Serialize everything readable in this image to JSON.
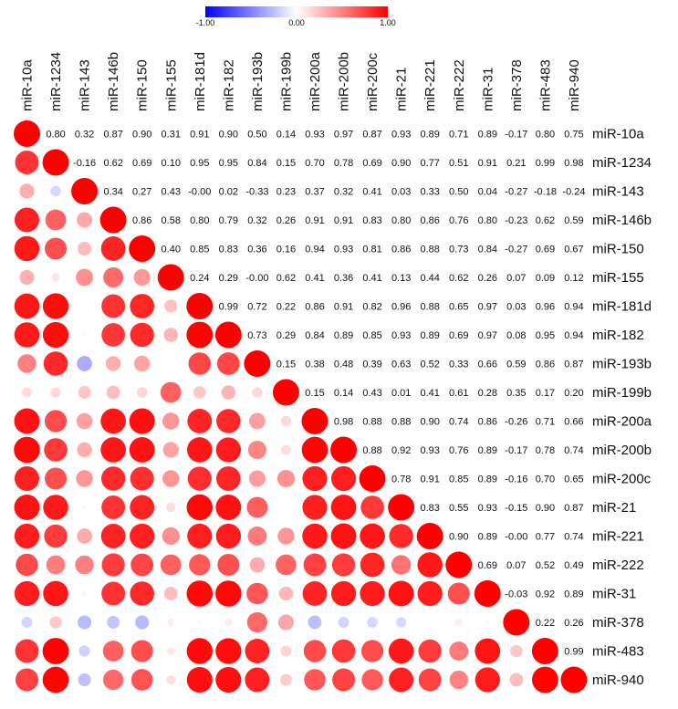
{
  "chart_data": {
    "type": "heatmap",
    "style": "correlation-plot, circles in lower triangle, numbers in upper triangle",
    "labels": [
      "miR-10a",
      "miR-1234",
      "miR-143",
      "miR-146b",
      "miR-150",
      "miR-155",
      "miR-181d",
      "miR-182",
      "miR-193b",
      "miR-199b",
      "miR-200a",
      "miR-200b",
      "miR-200c",
      "miR-21",
      "miR-221",
      "miR-222",
      "miR-31",
      "miR-378",
      "miR-483",
      "miR-940"
    ],
    "upper_text": [
      [
        "",
        "0.80",
        "0.32",
        "0.87",
        "0.90",
        "0.31",
        "0.91",
        "0.90",
        "0.50",
        "0.14",
        "0.93",
        "0.97",
        "0.87",
        "0.93",
        "0.89",
        "0.71",
        "0.89",
        "-0.17",
        "0.80",
        "0.75"
      ],
      [
        "",
        "",
        "-0.16",
        "0.62",
        "0.69",
        "0.10",
        "0.95",
        "0.95",
        "0.84",
        "0.15",
        "0.70",
        "0.78",
        "0.69",
        "0.90",
        "0.77",
        "0.51",
        "0.91",
        "0.21",
        "0.99",
        "0.98"
      ],
      [
        "",
        "",
        "",
        "0.34",
        "0.27",
        "0.43",
        "-0.00",
        "0.02",
        "-0.33",
        "0.23",
        "0.37",
        "0.32",
        "0.41",
        "0.03",
        "0.33",
        "0.50",
        "0.04",
        "-0.27",
        "-0.18",
        "-0.24"
      ],
      [
        "",
        "",
        "",
        "",
        "0.86",
        "0.58",
        "0.80",
        "0.79",
        "0.32",
        "0.26",
        "0.91",
        "0.91",
        "0.83",
        "0.80",
        "0.86",
        "0.76",
        "0.80",
        "-0.23",
        "0.62",
        "0.59"
      ],
      [
        "",
        "",
        "",
        "",
        "",
        "0.40",
        "0.85",
        "0.83",
        "0.36",
        "0.16",
        "0.94",
        "0.93",
        "0.81",
        "0.86",
        "0.88",
        "0.73",
        "0.84",
        "-0.27",
        "0.69",
        "0.67"
      ],
      [
        "",
        "",
        "",
        "",
        "",
        "",
        "0.24",
        "0.29",
        "-0.00",
        "0.62",
        "0.41",
        "0.36",
        "0.41",
        "0.13",
        "0.44",
        "0.62",
        "0.26",
        "0.07",
        "0.09",
        "0.12"
      ],
      [
        "",
        "",
        "",
        "",
        "",
        "",
        "",
        "0.99",
        "0.72",
        "0.22",
        "0.86",
        "0.91",
        "0.82",
        "0.96",
        "0.88",
        "0.65",
        "0.97",
        "0.03",
        "0.96",
        "0.94"
      ],
      [
        "",
        "",
        "",
        "",
        "",
        "",
        "",
        "",
        "0.73",
        "0.29",
        "0.84",
        "0.89",
        "0.85",
        "0.93",
        "0.89",
        "0.69",
        "0.97",
        "0.08",
        "0.95",
        "0.94"
      ],
      [
        "",
        "",
        "",
        "",
        "",
        "",
        "",
        "",
        "",
        "0.15",
        "0.38",
        "0.48",
        "0.39",
        "0.63",
        "0.52",
        "0.33",
        "0.66",
        "0.59",
        "0.86",
        "0.87"
      ],
      [
        "",
        "",
        "",
        "",
        "",
        "",
        "",
        "",
        "",
        "",
        "0.15",
        "0.14",
        "0.43",
        "0.01",
        "0.41",
        "0.61",
        "0.28",
        "0.35",
        "0.17",
        "0.20"
      ],
      [
        "",
        "",
        "",
        "",
        "",
        "",
        "",
        "",
        "",
        "",
        "",
        "0.98",
        "0.88",
        "0.88",
        "0.90",
        "0.74",
        "0.86",
        "-0.26",
        "0.71",
        "0.66"
      ],
      [
        "",
        "",
        "",
        "",
        "",
        "",
        "",
        "",
        "",
        "",
        "",
        "",
        "0.88",
        "0.92",
        "0.93",
        "0.76",
        "0.89",
        "-0.17",
        "0.78",
        "0.74"
      ],
      [
        "",
        "",
        "",
        "",
        "",
        "",
        "",
        "",
        "",
        "",
        "",
        "",
        "",
        "0.78",
        "0.91",
        "0.85",
        "0.89",
        "-0.16",
        "0.70",
        "0.65"
      ],
      [
        "",
        "",
        "",
        "",
        "",
        "",
        "",
        "",
        "",
        "",
        "",
        "",
        "",
        "",
        "0.83",
        "0.55",
        "0.93",
        "-0.15",
        "0.90",
        "0.87"
      ],
      [
        "",
        "",
        "",
        "",
        "",
        "",
        "",
        "",
        "",
        "",
        "",
        "",
        "",
        "",
        "",
        "0.90",
        "0.89",
        "-0.00",
        "0.77",
        "0.74"
      ],
      [
        "",
        "",
        "",
        "",
        "",
        "",
        "",
        "",
        "",
        "",
        "",
        "",
        "",
        "",
        "",
        "",
        "0.69",
        "0.07",
        "0.52",
        "0.49"
      ],
      [
        "",
        "",
        "",
        "",
        "",
        "",
        "",
        "",
        "",
        "",
        "",
        "",
        "",
        "",
        "",
        "",
        "",
        "-0.03",
        "0.92",
        "0.89"
      ],
      [
        "",
        "",
        "",
        "",
        "",
        "",
        "",
        "",
        "",
        "",
        "",
        "",
        "",
        "",
        "",
        "",
        "",
        "",
        "0.22",
        "0.26"
      ],
      [
        "",
        "",
        "",
        "",
        "",
        "",
        "",
        "",
        "",
        "",
        "",
        "",
        "",
        "",
        "",
        "",
        "",
        "",
        "",
        "0.99"
      ],
      [
        "",
        "",
        "",
        "",
        "",
        "",
        "",
        "",
        "",
        "",
        "",
        "",
        "",
        "",
        "",
        "",
        "",
        "",
        "",
        ""
      ]
    ],
    "colorbar": {
      "min": -1,
      "max": 1,
      "ticks": [
        "-1.00",
        "0.00",
        "1.00"
      ],
      "colors": {
        "negative": "#0000ff",
        "zero": "#ffffff",
        "positive": "#ff0000"
      }
    },
    "diagonal_value": 1
  }
}
